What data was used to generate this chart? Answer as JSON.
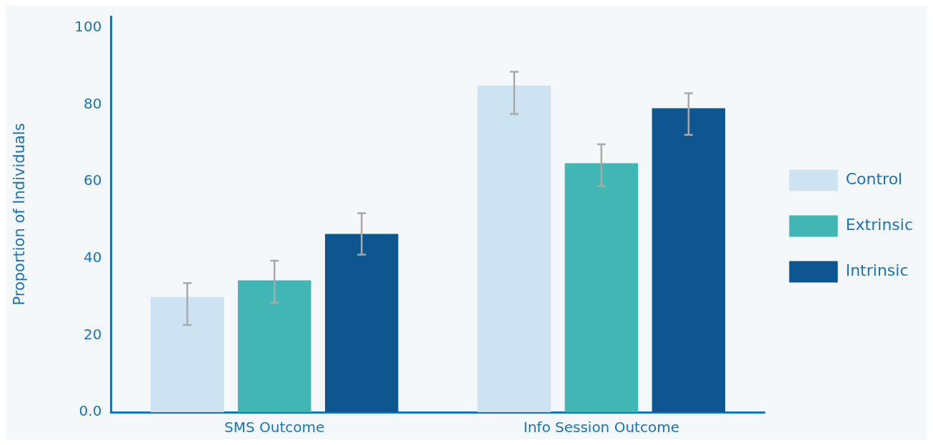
{
  "chart_data": {
    "type": "bar",
    "ylabel": "Proportion of Individuals",
    "categories": [
      "SMS Outcome",
      "Info Session Outcome"
    ],
    "series": [
      {
        "name": "Control",
        "color": "#cde3f1",
        "values": [
          30,
          85
        ],
        "errors": [
          [
            22.7,
            33.6
          ],
          [
            77.6,
            88.6
          ]
        ]
      },
      {
        "name": "Extrinsic",
        "color": "#42b5b5",
        "values": [
          34.3,
          64.8
        ],
        "errors": [
          [
            28.5,
            39.4
          ],
          [
            58.8,
            69.7
          ]
        ]
      },
      {
        "name": "Intrinsic",
        "color": "#0d568f",
        "values": [
          46.4,
          79.1
        ],
        "errors": [
          [
            41,
            51.8
          ],
          [
            72.2,
            83
          ]
        ]
      }
    ],
    "ylim": [
      0,
      103
    ],
    "yticks": [
      {
        "value": 0,
        "label": "0.0"
      },
      20,
      40,
      60,
      80,
      100
    ],
    "grid": false,
    "legend": "right"
  }
}
